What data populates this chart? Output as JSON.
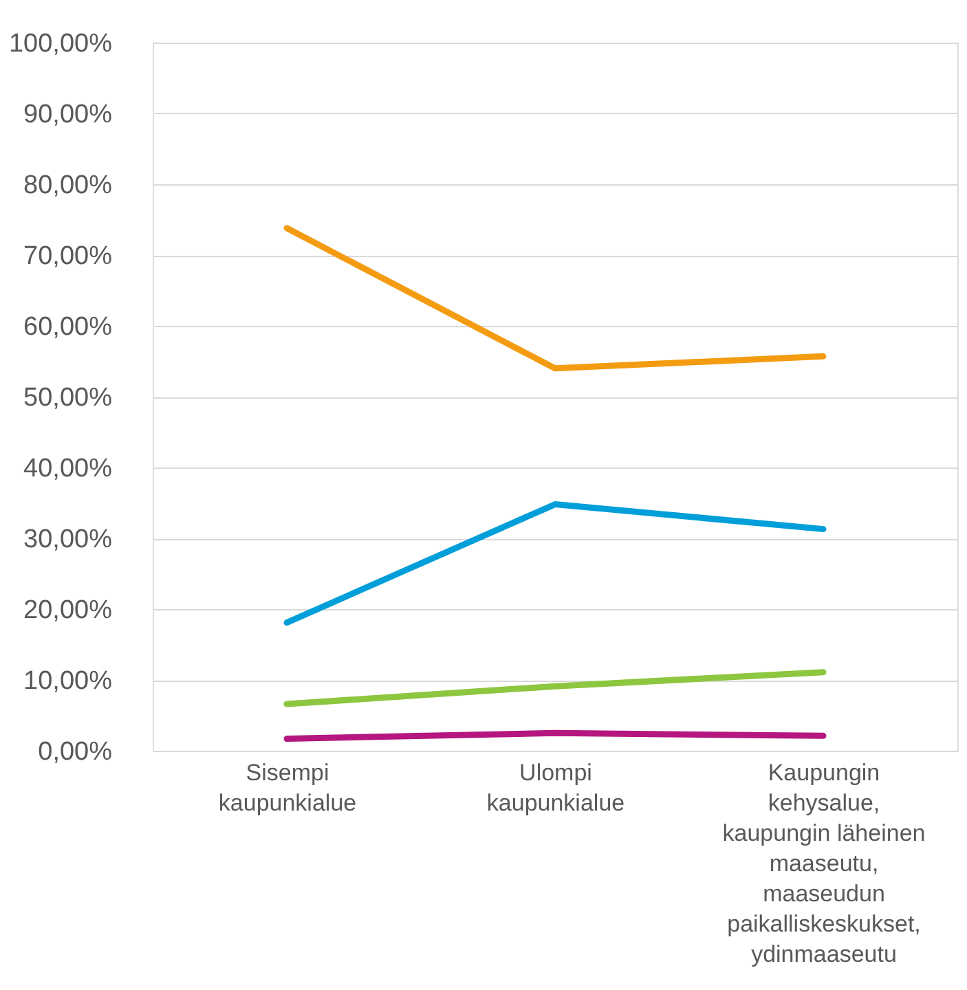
{
  "chart_data": {
    "type": "line",
    "categories": [
      "Sisempi kaupunkialue",
      "Ulompi kaupunkialue",
      "Kaupungin kehysalue, kaupungin läheinen maaseutu, maaseudun paikalliskeskukset, ydinmaaseutu"
    ],
    "series": [
      {
        "color": "#f39c12",
        "values": [
          73.8,
          54.0,
          55.7
        ]
      },
      {
        "color": "#009fda",
        "values": [
          18.1,
          34.8,
          31.3
        ]
      },
      {
        "color": "#8dc63f",
        "values": [
          6.6,
          9.1,
          11.1
        ]
      },
      {
        "color": "#b5177f",
        "values": [
          1.7,
          2.5,
          2.1
        ]
      }
    ],
    "ylim": [
      0,
      100
    ],
    "yticks": [
      {
        "value": 0,
        "label": "0,00%"
      },
      {
        "value": 10,
        "label": "10,00%"
      },
      {
        "value": 20,
        "label": "20,00%"
      },
      {
        "value": 30,
        "label": "30,00%"
      },
      {
        "value": 40,
        "label": "40,00%"
      },
      {
        "value": 50,
        "label": "50,00%"
      },
      {
        "value": 60,
        "label": "60,00%"
      },
      {
        "value": 70,
        "label": "70,00%"
      },
      {
        "value": 80,
        "label": "80,00%"
      },
      {
        "value": 90,
        "label": "90,00%"
      },
      {
        "value": 100,
        "label": "100,00%"
      }
    ],
    "grid": "y",
    "legend": false,
    "marker": "none",
    "line_style": "solid"
  }
}
